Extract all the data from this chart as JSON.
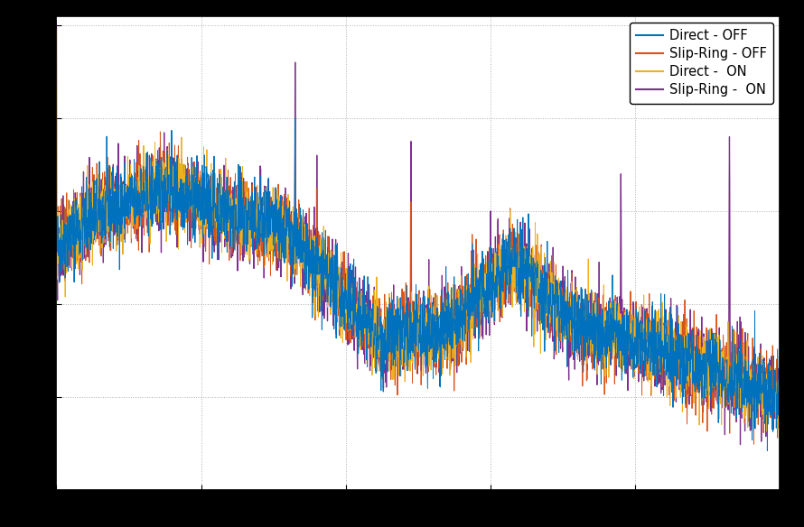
{
  "legend_labels": [
    "Direct - OFF",
    "Slip-Ring - OFF",
    "Direct -  ON",
    "Slip-Ring -  ON"
  ],
  "colors": [
    "#0072BD",
    "#D95319",
    "#EDB120",
    "#7E2F8E"
  ],
  "linewidths": [
    0.7,
    0.7,
    0.7,
    0.9
  ],
  "background_color": "#FFFFFF",
  "outer_background": "#000000",
  "grid_color": "#B0B0B0",
  "n_points": 3000,
  "seed": 42,
  "figsize": [
    8.9,
    5.84
  ],
  "dpi": 100,
  "legend_fontsize": 10.5,
  "ylim": [
    0.0,
    1.02
  ],
  "xlim": [
    0.0,
    1.0
  ]
}
